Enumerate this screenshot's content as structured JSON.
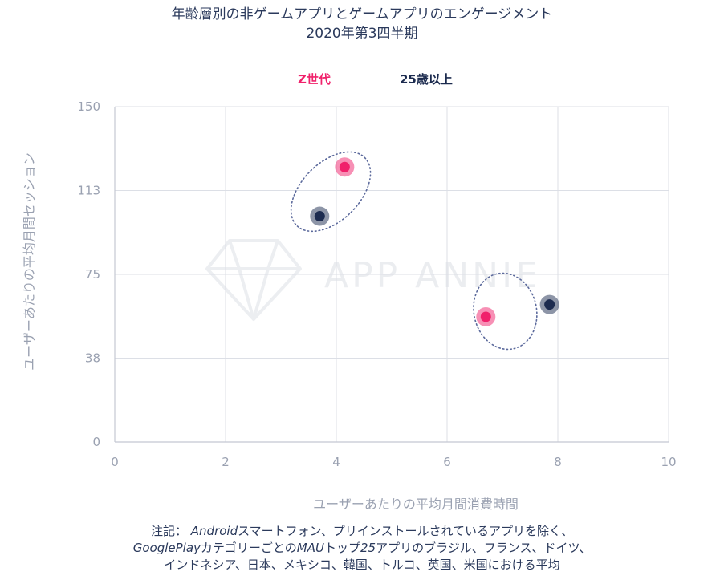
{
  "title_line1": "年齢層別の非ゲームアプリとゲームアプリのエンゲージメント",
  "title_line2": "2020年第3四半期",
  "watermark": "APP ANNIE",
  "footnote": {
    "prefix": "注記：",
    "line1_italic": "Android",
    "line1_rest": "スマートフォン、プリインストールされているアプリを除く、",
    "line2_italic": "GooglePlay",
    "line2_mid": "カテゴリーごとの",
    "line2_italic2": "MAU",
    "line2_mid2": "トップ",
    "line2_italic3": "25",
    "line2_rest": "アプリのブラジル、フランス、ドイツ、",
    "line3": "インドネシア、日本、メキシコ、韓国、トルコ、英国、米国における平均"
  },
  "chart_data": {
    "type": "scatter",
    "title": "年齢層別の非ゲームアプリとゲームアプリのエンゲージメント 2020年第3四半期",
    "xlabel": "ユーザーあたりの平均月間消費時間",
    "ylabel": "ユーザーあたりの平均月間セッション",
    "xlim": [
      0,
      10
    ],
    "ylim": [
      0,
      150
    ],
    "xticks": [
      "0",
      "2",
      "4",
      "6",
      "8",
      "10"
    ],
    "yticks": [
      "0",
      "38",
      "75",
      "113",
      "150"
    ],
    "ytick_values": [
      0,
      37.5,
      75,
      112.5,
      150
    ],
    "grid": true,
    "legend_position": "top",
    "series": [
      {
        "name": "Z世代",
        "color": "#f0216b",
        "points": [
          {
            "x": 4.15,
            "y": 123
          },
          {
            "x": 6.7,
            "y": 56
          }
        ]
      },
      {
        "name": "25歳以上",
        "color": "#1c2b4f",
        "points": [
          {
            "x": 3.7,
            "y": 101
          },
          {
            "x": 7.85,
            "y": 61.5
          }
        ]
      }
    ],
    "groups": [
      {
        "cx": 3.9,
        "cy": 112,
        "rx": 0.95,
        "ry": 21.5,
        "rotation_deg": -45
      },
      {
        "cx": 7.05,
        "cy": 58.5,
        "rx": 1.26,
        "ry": 14,
        "rotation_deg": -12
      }
    ]
  }
}
